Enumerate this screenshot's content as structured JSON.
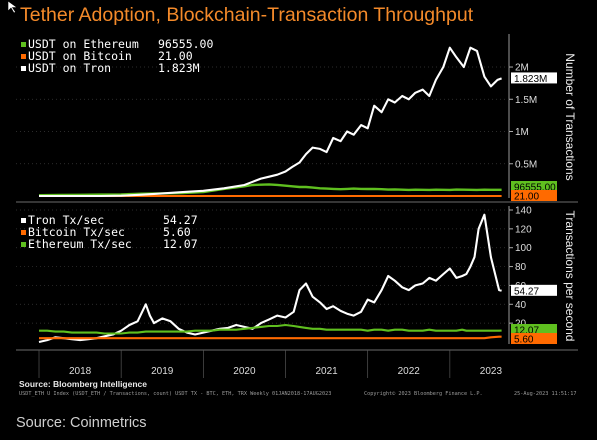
{
  "title": "Tether Adoption, Blockchain-Transaction Throughput",
  "source_bi": "Source: Bloomberg Intelligence",
  "footer": {
    "index": "USDT_ETH U Index (USDT_ETH / Transactions, count) USDT TX - BTC, ETH, TRX Weekly 01JAN2018-17AUG2023",
    "copyright": "Copyright© 2023 Bloomberg Finance L.P.",
    "timestamp": "25-Aug-2023 11:51:17"
  },
  "source": "Source: Coinmetrics",
  "colors": {
    "ethereum": "#5fbf1f",
    "bitcoin": "#ff6a00",
    "tron": "#ffffff",
    "title": "#f48a2a"
  },
  "chart_data": [
    {
      "type": "line",
      "ylabel": "Number of Transactions",
      "ylim": [
        0,
        2450000
      ],
      "yticks": [
        0.5,
        1,
        1.5,
        2
      ],
      "ytick_labels": [
        "0.5M",
        "1M",
        "1.5M",
        "2M"
      ],
      "x": [
        2018.0,
        2018.25,
        2018.5,
        2018.75,
        2019.0,
        2019.25,
        2019.5,
        2019.75,
        2020.0,
        2020.25,
        2020.5,
        2020.6,
        2020.7,
        2020.8,
        2020.9,
        2021.0,
        2021.08,
        2021.17,
        2021.25,
        2021.33,
        2021.42,
        2021.5,
        2021.58,
        2021.67,
        2021.75,
        2021.83,
        2021.92,
        2022.0,
        2022.08,
        2022.17,
        2022.25,
        2022.33,
        2022.42,
        2022.5,
        2022.58,
        2022.67,
        2022.75,
        2022.83,
        2022.92,
        2023.0,
        2023.08,
        2023.17,
        2023.25,
        2023.33,
        2023.42,
        2023.5,
        2023.58,
        2023.63
      ],
      "series": [
        {
          "name": "USDT on Ethereum",
          "last_label": "96555.00",
          "values": [
            12000,
            15000,
            18000,
            22000,
            25000,
            35000,
            40000,
            45000,
            60000,
            110000,
            150000,
            170000,
            175000,
            180000,
            172000,
            160000,
            150000,
            140000,
            140000,
            130000,
            120000,
            115000,
            110000,
            105000,
            110000,
            115000,
            110000,
            108000,
            110000,
            105000,
            100000,
            102000,
            98000,
            95000,
            98000,
            96000,
            95000,
            98000,
            96000,
            95000,
            100000,
            98000,
            96000,
            95000,
            97000,
            96000,
            96555,
            96555
          ]
        },
        {
          "name": "USDT on Bitcoin",
          "last_label": "21.00",
          "values": [
            21,
            21,
            21,
            21,
            21,
            21,
            21,
            21,
            21,
            21,
            21,
            21,
            21,
            21,
            21,
            21,
            21,
            21,
            21,
            21,
            21,
            21,
            21,
            21,
            21,
            21,
            21,
            21,
            21,
            21,
            21,
            21,
            21,
            21,
            21,
            21,
            21,
            21,
            21,
            21,
            21,
            21,
            21,
            21,
            21,
            21,
            21,
            21
          ]
        },
        {
          "name": "USDT on Tron",
          "last_label": "1.823M",
          "values": [
            0,
            0,
            0,
            0,
            5000,
            20000,
            40000,
            60000,
            80000,
            120000,
            170000,
            220000,
            270000,
            300000,
            330000,
            380000,
            450000,
            520000,
            650000,
            750000,
            730000,
            680000,
            900000,
            850000,
            1000000,
            950000,
            1100000,
            1050000,
            1400000,
            1300000,
            1500000,
            1450000,
            1550000,
            1500000,
            1600000,
            1650000,
            1550000,
            1800000,
            2000000,
            2300000,
            2150000,
            2000000,
            2300000,
            2250000,
            1850000,
            1700000,
            1800000,
            1823000
          ]
        }
      ]
    },
    {
      "type": "line",
      "ylabel": "Transactions per second",
      "ylim": [
        0,
        140
      ],
      "yticks": [
        20,
        40,
        60,
        80,
        100,
        120,
        140
      ],
      "ytick_labels": [
        "20",
        "40",
        "60",
        "80",
        "100",
        "120",
        "140"
      ],
      "xticks": [
        2018,
        2019,
        2020,
        2021,
        2022,
        2023
      ],
      "xtick_labels": [
        "2018",
        "2019",
        "2020",
        "2021",
        "2022",
        "2023"
      ],
      "x": [
        2018.0,
        2018.1,
        2018.2,
        2018.3,
        2018.4,
        2018.5,
        2018.6,
        2018.7,
        2018.8,
        2018.9,
        2019.0,
        2019.1,
        2019.2,
        2019.3,
        2019.35,
        2019.4,
        2019.5,
        2019.6,
        2019.7,
        2019.8,
        2019.9,
        2020.0,
        2020.1,
        2020.2,
        2020.3,
        2020.4,
        2020.5,
        2020.6,
        2020.7,
        2020.8,
        2020.9,
        2021.0,
        2021.1,
        2021.17,
        2021.25,
        2021.33,
        2021.42,
        2021.5,
        2021.58,
        2021.67,
        2021.75,
        2021.83,
        2021.92,
        2022.0,
        2022.08,
        2022.17,
        2022.25,
        2022.33,
        2022.42,
        2022.5,
        2022.58,
        2022.67,
        2022.75,
        2022.83,
        2022.92,
        2023.0,
        2023.08,
        2023.15,
        2023.2,
        2023.25,
        2023.3,
        2023.35,
        2023.42,
        2023.5,
        2023.6,
        2023.63
      ],
      "series": [
        {
          "name": "Tron Tx/sec",
          "last_label": "54.27",
          "values": [
            0,
            2,
            5,
            4,
            3,
            2,
            3,
            4,
            6,
            8,
            12,
            18,
            22,
            40,
            28,
            20,
            25,
            22,
            14,
            10,
            8,
            10,
            12,
            14,
            15,
            18,
            16,
            14,
            20,
            24,
            28,
            26,
            32,
            55,
            62,
            48,
            42,
            35,
            38,
            33,
            30,
            28,
            32,
            45,
            42,
            55,
            70,
            65,
            58,
            55,
            60,
            62,
            68,
            65,
            72,
            78,
            68,
            70,
            72,
            80,
            90,
            120,
            135,
            90,
            55,
            54.27
          ]
        },
        {
          "name": "Bitcoin Tx/sec",
          "last_label": "5.60",
          "values": [
            4,
            4,
            4,
            4,
            4,
            4,
            4,
            4,
            4,
            4,
            4,
            4,
            4,
            4,
            4,
            4,
            4,
            4,
            4,
            4,
            4,
            4,
            4,
            4,
            4,
            4,
            4,
            4,
            4,
            4,
            4,
            4,
            4,
            4,
            4,
            4,
            4,
            4,
            4,
            4,
            4,
            4,
            4,
            4,
            4,
            4,
            4,
            4,
            4,
            4,
            4,
            4,
            4,
            4,
            4,
            4,
            4,
            4,
            4,
            4,
            4,
            4,
            4,
            5,
            5.6,
            5.6
          ]
        },
        {
          "name": "Ethereum Tx/sec",
          "last_label": "12.07",
          "values": [
            12,
            12,
            11,
            11,
            10,
            10,
            10,
            10,
            9,
            9,
            9,
            10,
            10,
            11,
            11,
            11,
            11,
            11,
            11,
            11,
            12,
            12,
            12,
            13,
            13,
            13,
            14,
            15,
            16,
            17,
            17,
            18,
            17,
            16,
            15,
            14,
            14,
            13,
            13,
            13,
            13,
            13,
            13,
            12,
            13,
            13,
            12,
            13,
            13,
            12,
            12,
            12,
            13,
            12,
            12,
            12,
            12,
            13,
            12,
            12,
            12,
            12,
            12,
            12,
            12,
            12.07
          ]
        }
      ]
    }
  ]
}
